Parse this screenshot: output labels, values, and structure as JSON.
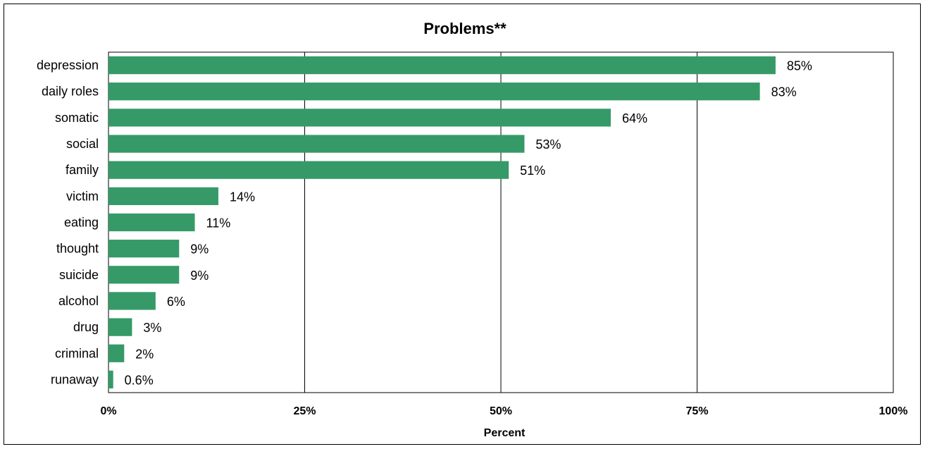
{
  "chart_data": {
    "type": "bar",
    "orientation": "horizontal",
    "title": "Problems**",
    "xlabel": "Percent",
    "ylabel": "",
    "xlim": [
      0,
      100
    ],
    "xticks": [
      0,
      25,
      50,
      75,
      100
    ],
    "xtick_labels": [
      "0%",
      "25%",
      "50%",
      "75%",
      "100%"
    ],
    "grid": "vertical",
    "legend": "none",
    "bar_color": "#359a67",
    "categories": [
      "depression",
      "daily roles",
      "somatic",
      "social",
      "family",
      "victim",
      "eating",
      "thought",
      "suicide",
      "alcohol",
      "drug",
      "criminal",
      "runaway"
    ],
    "values": [
      85,
      83,
      64,
      53,
      51,
      14,
      11,
      9,
      9,
      6,
      3,
      2,
      0.6
    ],
    "value_labels": [
      "85%",
      "83%",
      "64%",
      "53%",
      "51%",
      "14%",
      "11%",
      "9%",
      "9%",
      "6%",
      "3%",
      "2%",
      "0.6%"
    ]
  }
}
